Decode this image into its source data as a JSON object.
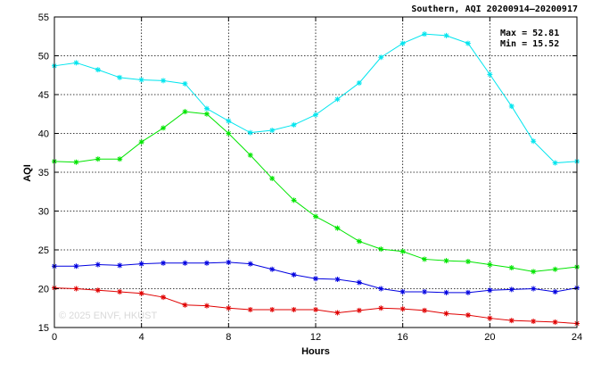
{
  "chart_data": {
    "type": "line",
    "title": "Southern, AQI 20200914–20200917",
    "xlabel": "Hours",
    "ylabel": "AQI",
    "xlim": [
      0,
      24
    ],
    "ylim": [
      15,
      55
    ],
    "xticks": [
      0,
      4,
      8,
      12,
      16,
      20,
      24
    ],
    "yticks": [
      15,
      20,
      25,
      30,
      35,
      40,
      45,
      50,
      55
    ],
    "grid": true,
    "annotations": {
      "max": "Max = 52.81",
      "min": "Min = 15.52"
    },
    "watermark": "© 2025  ENVF, HKUST",
    "x": [
      0,
      1,
      2,
      3,
      4,
      5,
      6,
      7,
      8,
      9,
      10,
      11,
      12,
      13,
      14,
      15,
      16,
      17,
      18,
      19,
      20,
      21,
      22,
      23,
      24
    ],
    "series": [
      {
        "color": "#00e5ee",
        "values": [
          48.7,
          49.1,
          48.2,
          47.2,
          46.9,
          46.8,
          46.4,
          43.2,
          41.6,
          40.1,
          40.4,
          41.1,
          42.4,
          44.4,
          46.5,
          49.8,
          51.6,
          52.8,
          52.6,
          51.6,
          47.6,
          43.5,
          39.0,
          36.2,
          36.4
        ]
      },
      {
        "color": "#00e500",
        "values": [
          36.4,
          36.3,
          36.7,
          36.7,
          38.9,
          40.7,
          42.8,
          42.5,
          40.0,
          37.2,
          34.2,
          31.4,
          29.3,
          27.8,
          26.1,
          25.1,
          24.8,
          23.8,
          23.6,
          23.5,
          23.1,
          22.7,
          22.2,
          22.5,
          22.8
        ]
      },
      {
        "color": "#0000e0",
        "values": [
          22.9,
          22.9,
          23.1,
          23.0,
          23.2,
          23.3,
          23.3,
          23.3,
          23.4,
          23.2,
          22.5,
          21.8,
          21.3,
          21.2,
          20.8,
          20.0,
          19.6,
          19.6,
          19.5,
          19.5,
          19.8,
          19.9,
          20.0,
          19.6,
          20.1
        ]
      },
      {
        "color": "#e00000",
        "values": [
          20.1,
          20.0,
          19.8,
          19.6,
          19.4,
          18.9,
          17.9,
          17.8,
          17.5,
          17.3,
          17.3,
          17.3,
          17.3,
          16.9,
          17.2,
          17.5,
          17.4,
          17.2,
          16.8,
          16.6,
          16.2,
          15.9,
          15.8,
          15.7,
          15.52
        ]
      }
    ]
  }
}
